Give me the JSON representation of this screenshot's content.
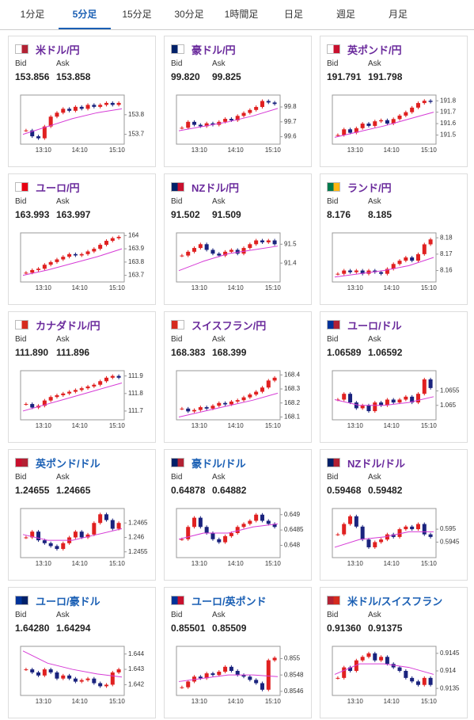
{
  "tabs": [
    {
      "label": "1分足",
      "active": false
    },
    {
      "label": "5分足",
      "active": true
    },
    {
      "label": "15分足",
      "active": false
    },
    {
      "label": "30分足",
      "active": false
    },
    {
      "label": "1時間足",
      "active": false
    },
    {
      "label": "日足",
      "active": false
    },
    {
      "label": "週足",
      "active": false
    },
    {
      "label": "月足",
      "active": false
    }
  ],
  "cards": [
    {
      "pair": "米ドル/円",
      "color": "#6a2a9c",
      "bid_label": "Bid",
      "ask_label": "Ask",
      "bid": "153.856",
      "ask": "153.858",
      "chart": {
        "type": "candlestick",
        "ylim": [
          153.65,
          153.9
        ],
        "yticks": [
          153.7,
          153.8
        ],
        "xticks": [
          "13:10",
          "14:10",
          "15:10"
        ],
        "closes": [
          153.72,
          153.69,
          153.68,
          153.74,
          153.79,
          153.81,
          153.83,
          153.82,
          153.84,
          153.83,
          153.85,
          153.84,
          153.85,
          153.86,
          153.85,
          153.86
        ],
        "ma": [
          153.7,
          153.74,
          153.78,
          153.81,
          153.83
        ]
      }
    },
    {
      "pair": "豪ドル/円",
      "color": "#6a2a9c",
      "bid_label": "Bid",
      "ask_label": "Ask",
      "bid": "99.820",
      "ask": "99.825",
      "chart": {
        "type": "candlestick",
        "ylim": [
          99.55,
          99.88
        ],
        "yticks": [
          99.6,
          99.7,
          99.8
        ],
        "xticks": [
          "13:10",
          "14:10",
          "15:10"
        ],
        "closes": [
          99.66,
          99.7,
          99.68,
          99.67,
          99.69,
          99.68,
          99.7,
          99.72,
          99.71,
          99.74,
          99.76,
          99.78,
          99.8,
          99.84,
          99.83,
          99.82
        ],
        "ma": [
          99.64,
          99.67,
          99.7,
          99.74,
          99.79
        ]
      }
    },
    {
      "pair": "英ポンド/円",
      "color": "#6a2a9c",
      "bid_label": "Bid",
      "ask_label": "Ask",
      "bid": "191.791",
      "ask": "191.798",
      "chart": {
        "type": "candlestick",
        "ylim": [
          191.42,
          191.85
        ],
        "yticks": [
          191.5,
          191.6,
          191.7,
          191.8
        ],
        "xticks": [
          "13:10",
          "14:10",
          "15:10"
        ],
        "closes": [
          191.5,
          191.55,
          191.52,
          191.56,
          191.6,
          191.58,
          191.62,
          191.63,
          191.6,
          191.64,
          191.67,
          191.7,
          191.74,
          191.78,
          191.8,
          191.79
        ],
        "ma": [
          191.48,
          191.53,
          191.58,
          191.64,
          191.7
        ]
      }
    },
    {
      "pair": "ユーロ/円",
      "color": "#6a2a9c",
      "bid_label": "Bid",
      "ask_label": "Ask",
      "bid": "163.993",
      "ask": "163.997",
      "chart": {
        "type": "candlestick",
        "ylim": [
          163.65,
          164.02
        ],
        "yticks": [
          163.7,
          163.8,
          163.9,
          164
        ],
        "xticks": [
          "13:10",
          "14:10",
          "15:10"
        ],
        "closes": [
          163.72,
          163.74,
          163.75,
          163.78,
          163.8,
          163.82,
          163.84,
          163.86,
          163.85,
          163.86,
          163.88,
          163.9,
          163.93,
          163.96,
          163.98,
          163.99
        ],
        "ma": [
          163.7,
          163.74,
          163.79,
          163.84,
          163.9
        ]
      }
    },
    {
      "pair": "NZドル/円",
      "color": "#6a2a9c",
      "bid_label": "Bid",
      "ask_label": "Ask",
      "bid": "91.502",
      "ask": "91.509",
      "chart": {
        "type": "candlestick",
        "ylim": [
          91.3,
          91.56
        ],
        "yticks": [
          91.4,
          91.5
        ],
        "xticks": [
          "13:10",
          "14:10",
          "15:10"
        ],
        "closes": [
          91.44,
          91.46,
          91.48,
          91.5,
          91.47,
          91.45,
          91.44,
          91.46,
          91.47,
          91.45,
          91.48,
          91.5,
          91.52,
          91.51,
          91.52,
          91.5
        ],
        "ma": [
          91.36,
          91.41,
          91.45,
          91.47,
          91.49
        ]
      }
    },
    {
      "pair": "ランド/円",
      "color": "#6a2a9c",
      "bid_label": "Bid",
      "ask_label": "Ask",
      "bid": "8.176",
      "ask": "8.185",
      "chart": {
        "type": "candlestick",
        "ylim": [
          8.153,
          8.183
        ],
        "yticks": [
          8.16,
          8.17,
          8.18
        ],
        "xticks": [
          "13:10",
          "14:10",
          "15:10"
        ],
        "closes": [
          8.158,
          8.16,
          8.159,
          8.16,
          8.158,
          8.16,
          8.159,
          8.158,
          8.161,
          8.164,
          8.166,
          8.168,
          8.166,
          8.17,
          8.176,
          8.179
        ],
        "ma": [
          8.156,
          8.158,
          8.16,
          8.163,
          8.168
        ]
      }
    },
    {
      "pair": "カナダドル/円",
      "color": "#6a2a9c",
      "bid_label": "Bid",
      "ask_label": "Ask",
      "bid": "111.890",
      "ask": "111.896",
      "chart": {
        "type": "candlestick",
        "ylim": [
          111.65,
          111.93
        ],
        "yticks": [
          111.7,
          111.8,
          111.9
        ],
        "xticks": [
          "13:10",
          "14:10",
          "15:10"
        ],
        "closes": [
          111.74,
          111.72,
          111.73,
          111.76,
          111.78,
          111.79,
          111.8,
          111.81,
          111.82,
          111.83,
          111.84,
          111.85,
          111.87,
          111.89,
          111.9,
          111.89
        ],
        "ma": [
          111.7,
          111.74,
          111.78,
          111.82,
          111.86
        ]
      }
    },
    {
      "pair": "スイスフラン/円",
      "color": "#6a2a9c",
      "bid_label": "Bid",
      "ask_label": "Ask",
      "bid": "168.383",
      "ask": "168.399",
      "chart": {
        "type": "candlestick",
        "ylim": [
          168.08,
          168.43
        ],
        "yticks": [
          168.1,
          168.2,
          168.3,
          168.4
        ],
        "xticks": [
          "13:10",
          "14:10",
          "15:10"
        ],
        "closes": [
          168.16,
          168.14,
          168.15,
          168.17,
          168.16,
          168.18,
          168.2,
          168.19,
          168.21,
          168.22,
          168.24,
          168.26,
          168.28,
          168.31,
          168.36,
          168.38
        ],
        "ma": [
          168.1,
          168.14,
          168.18,
          168.22,
          168.27
        ]
      }
    },
    {
      "pair": "ユーロ/ドル",
      "color": "#6a2a9c",
      "bid_label": "Bid",
      "ask_label": "Ask",
      "bid": "1.06589",
      "ask": "1.06592",
      "chart": {
        "type": "candlestick",
        "ylim": [
          1.0645,
          1.0662
        ],
        "yticks": [
          1.065,
          1.0655
        ],
        "xticks": [
          "13:10",
          "14:10",
          "15:10"
        ],
        "closes": [
          1.0652,
          1.0654,
          1.0651,
          1.0649,
          1.065,
          1.0648,
          1.0651,
          1.065,
          1.0652,
          1.0651,
          1.0652,
          1.0653,
          1.0651,
          1.0654,
          1.0659,
          1.0656
        ],
        "ma": [
          1.0652,
          1.065,
          1.065,
          1.0651,
          1.0653
        ]
      }
    },
    {
      "pair": "英ポンド/ドル",
      "color": "#1a5fb4",
      "bid_label": "Bid",
      "ask_label": "Ask",
      "bid": "1.24655",
      "ask": "1.24665",
      "chart": {
        "type": "candlestick",
        "ylim": [
          1.2453,
          1.247
        ],
        "yticks": [
          1.2455,
          1.246,
          1.2465
        ],
        "xticks": [
          "13:10",
          "14:10",
          "15:10"
        ],
        "closes": [
          1.246,
          1.2462,
          1.2459,
          1.2458,
          1.2457,
          1.2456,
          1.2458,
          1.246,
          1.2462,
          1.246,
          1.2461,
          1.2465,
          1.2468,
          1.2466,
          1.2463,
          1.2465
        ],
        "ma": [
          1.2461,
          1.2459,
          1.2459,
          1.2461,
          1.2463
        ]
      }
    },
    {
      "pair": "豪ドル/ドル",
      "color": "#1a5fb4",
      "bid_label": "Bid",
      "ask_label": "Ask",
      "bid": "0.64878",
      "ask": "0.64882",
      "chart": {
        "type": "candlestick",
        "ylim": [
          0.6476,
          0.6492
        ],
        "yticks": [
          0.648,
          0.6485,
          0.649
        ],
        "xticks": [
          "13:10",
          "14:10",
          "15:10"
        ],
        "closes": [
          0.6482,
          0.6486,
          0.6489,
          0.6486,
          0.6484,
          0.6482,
          0.6481,
          0.6483,
          0.6484,
          0.6486,
          0.6487,
          0.6488,
          0.649,
          0.6488,
          0.6487,
          0.6486
        ],
        "ma": [
          0.6482,
          0.6484,
          0.6484,
          0.6486,
          0.6487
        ]
      }
    },
    {
      "pair": "NZドル/ドル",
      "color": "#6a2a9c",
      "bid_label": "Bid",
      "ask_label": "Ask",
      "bid": "0.59468",
      "ask": "0.59482",
      "chart": {
        "type": "candlestick",
        "ylim": [
          0.5939,
          0.5958
        ],
        "yticks": [
          0.5945,
          0.595
        ],
        "xticks": [
          "13:10",
          "14:10",
          "15:10"
        ],
        "closes": [
          0.5948,
          0.5952,
          0.5955,
          0.5951,
          0.5946,
          0.5943,
          0.5945,
          0.5946,
          0.5948,
          0.5947,
          0.595,
          0.5951,
          0.595,
          0.5952,
          0.5948,
          0.5947
        ],
        "ma": [
          0.5943,
          0.5946,
          0.5947,
          0.5949,
          0.5949
        ]
      }
    },
    {
      "pair": "ユーロ/豪ドル",
      "color": "#1a5fb4",
      "bid_label": "Bid",
      "ask_label": "Ask",
      "bid": "1.64280",
      "ask": "1.64294",
      "chart": {
        "type": "candlestick",
        "ylim": [
          1.6413,
          1.6445
        ],
        "yticks": [
          1.642,
          1.643,
          1.644
        ],
        "xticks": [
          "13:10",
          "14:10",
          "15:10"
        ],
        "closes": [
          1.643,
          1.6428,
          1.6426,
          1.643,
          1.6428,
          1.6424,
          1.6426,
          1.6424,
          1.6422,
          1.6423,
          1.6424,
          1.6421,
          1.6419,
          1.642,
          1.6428,
          1.643
        ],
        "ma": [
          1.6442,
          1.6434,
          1.643,
          1.6427,
          1.6425
        ]
      }
    },
    {
      "pair": "ユーロ/英ポンド",
      "color": "#1a5fb4",
      "bid_label": "Bid",
      "ask_label": "Ask",
      "bid": "0.85501",
      "ask": "0.85509",
      "chart": {
        "type": "candlestick",
        "ylim": [
          0.85455,
          0.85515
        ],
        "yticks": [
          0.8546,
          0.8548,
          0.855
        ],
        "xticks": [
          "13:10",
          "14:10",
          "15:10"
        ],
        "closes": [
          0.85465,
          0.85472,
          0.85478,
          0.85476,
          0.85482,
          0.8548,
          0.85484,
          0.8549,
          0.85485,
          0.8548,
          0.85478,
          0.85474,
          0.8547,
          0.85462,
          0.85498,
          0.85501
        ],
        "ma": [
          0.85472,
          0.85476,
          0.8548,
          0.8548,
          0.85478
        ]
      }
    },
    {
      "pair": "米ドル/スイスフラン",
      "color": "#1a5fb4",
      "bid_label": "Bid",
      "ask_label": "Ask",
      "bid": "0.91360",
      "ask": "0.91375",
      "chart": {
        "type": "candlestick",
        "ylim": [
          0.9133,
          0.9147
        ],
        "yticks": [
          0.9135,
          0.914,
          0.9145
        ],
        "xticks": [
          "13:10",
          "14:10",
          "15:10"
        ],
        "closes": [
          0.9138,
          0.9141,
          0.914,
          0.9143,
          0.9144,
          0.9145,
          0.9143,
          0.9144,
          0.9142,
          0.9141,
          0.914,
          0.9138,
          0.9137,
          0.9136,
          0.9138,
          0.9136
        ],
        "ma": [
          0.9139,
          0.9142,
          0.9142,
          0.9141,
          0.9139
        ]
      }
    }
  ]
}
